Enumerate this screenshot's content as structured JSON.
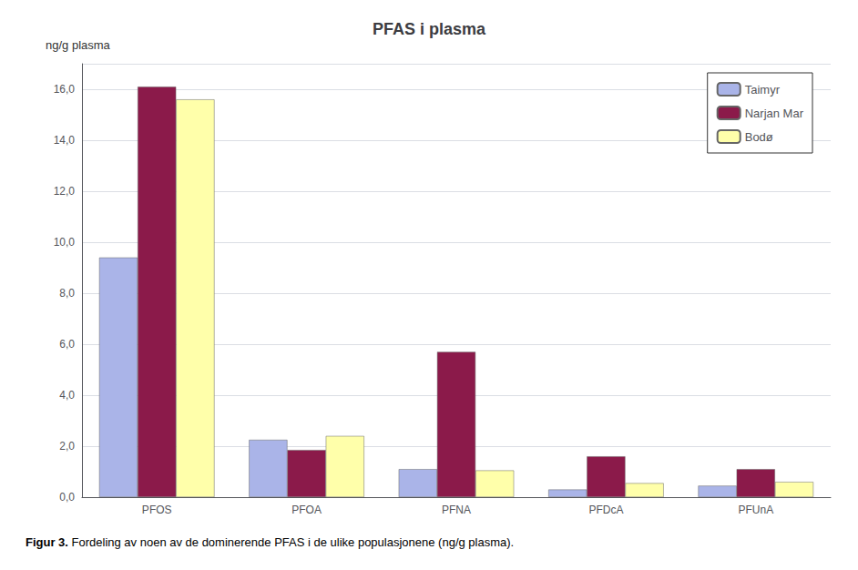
{
  "chart_data": {
    "type": "bar",
    "title": "PFAS i plasma",
    "ylabel": "ng/g plasma",
    "annotations": [
      "Figur 3.",
      "Fordeling av noen av de dominerende PFAS i de ulike populasjonene (ng/g plasma)."
    ],
    "categories": [
      "PFOS",
      "PFOA",
      "PFNA",
      "PFDcA",
      "PFUnA"
    ],
    "series": [
      {
        "name": "Taimyr",
        "color": "#aab4e8",
        "values": [
          9.4,
          2.25,
          1.1,
          0.3,
          0.45
        ]
      },
      {
        "name": "Narjan Mar",
        "color": "#8b1a4a",
        "values": [
          16.1,
          1.85,
          5.7,
          1.6,
          1.1
        ]
      },
      {
        "name": "Bodø",
        "color": "#ffffaa",
        "values": [
          15.6,
          2.4,
          1.05,
          0.55,
          0.6
        ]
      }
    ],
    "ylim": [
      0,
      17
    ],
    "yticks": [
      {
        "value": 0,
        "label": "0,0"
      },
      {
        "value": 2,
        "label": "2,0"
      },
      {
        "value": 4,
        "label": "4,0"
      },
      {
        "value": 6,
        "label": "6,0"
      },
      {
        "value": 8,
        "label": "8,0"
      },
      {
        "value": 10,
        "label": "10,0"
      },
      {
        "value": 12,
        "label": "12,0"
      },
      {
        "value": 14,
        "label": "14,0"
      },
      {
        "value": 16,
        "label": "16,0"
      }
    ],
    "grid": true,
    "legend": "upper right"
  }
}
